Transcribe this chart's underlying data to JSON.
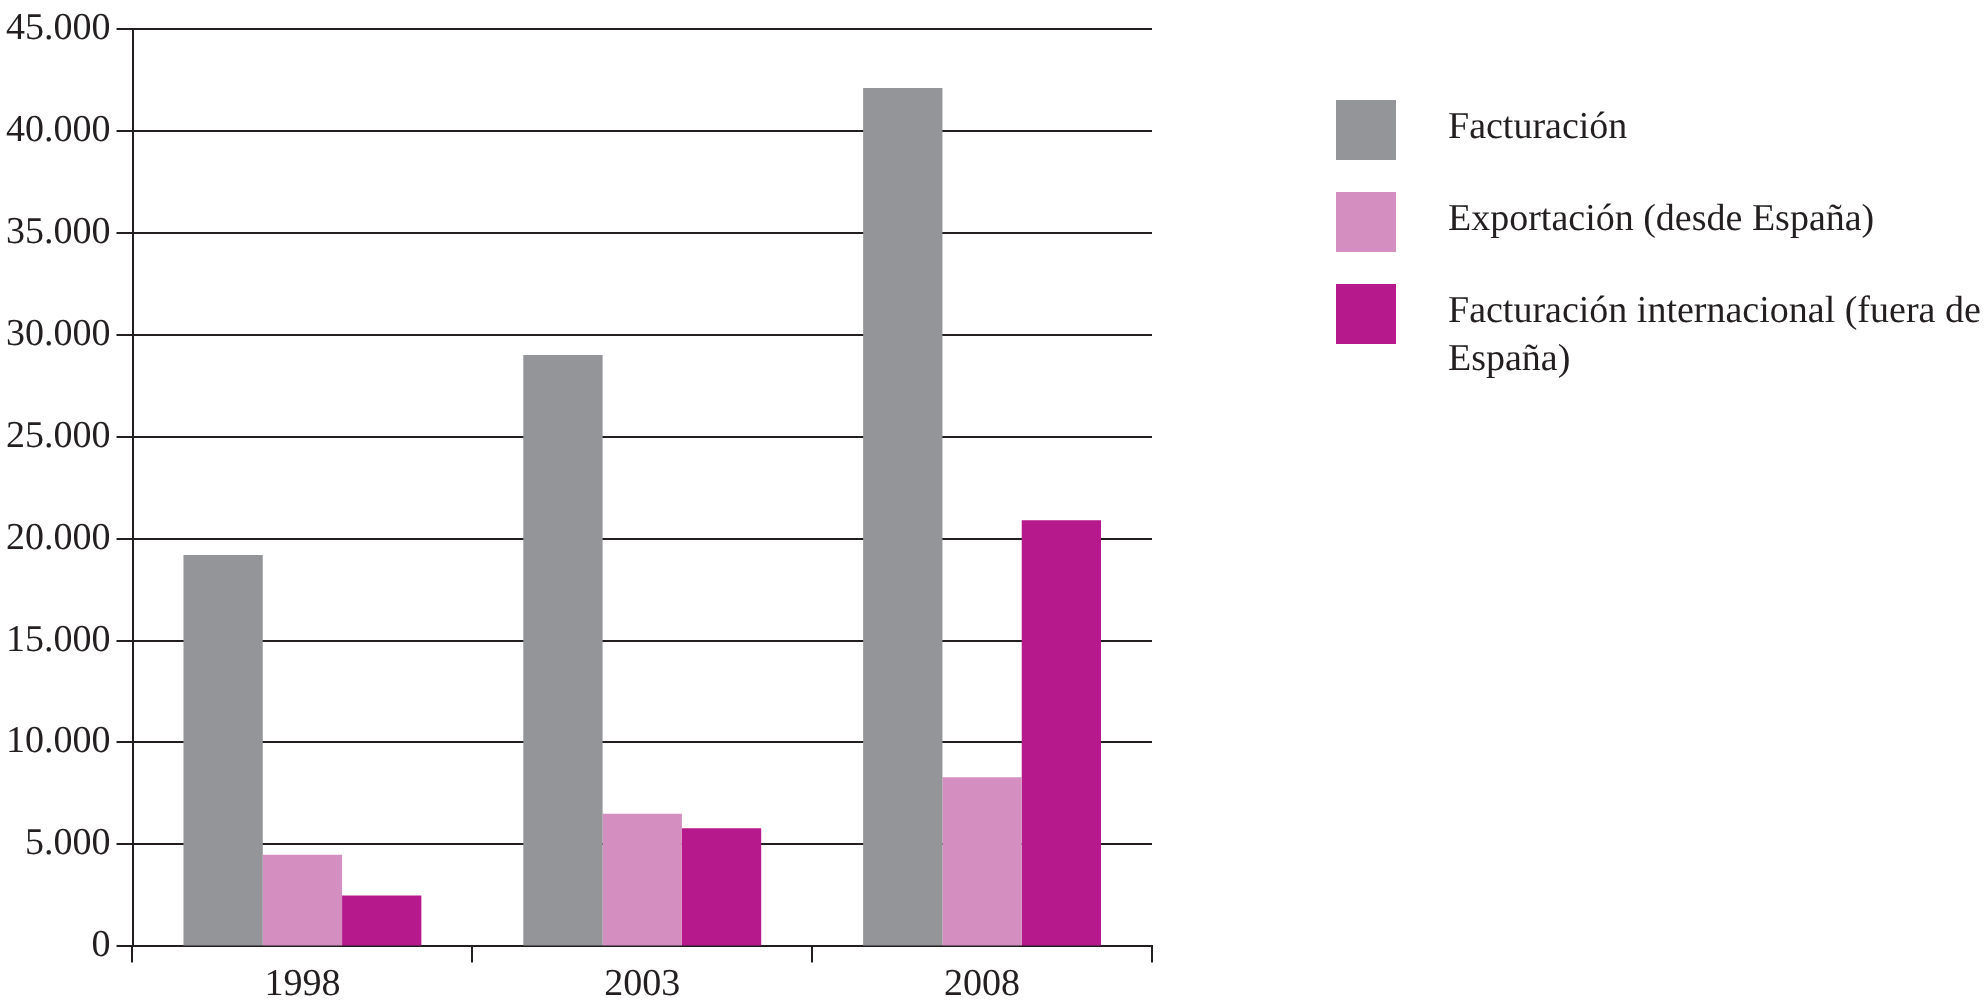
{
  "chart_data": {
    "type": "bar",
    "categories": [
      "1998",
      "2003",
      "2008"
    ],
    "series": [
      {
        "name": "Facturación",
        "color": "#939598",
        "values": [
          19200,
          29000,
          42100
        ]
      },
      {
        "name": "Exportación (desde España)",
        "color": "#d48fc0",
        "values": [
          4500,
          6500,
          8300
        ]
      },
      {
        "name": "Facturación internacional (fuera de España)",
        "color": "#b5198b",
        "values": [
          2500,
          5800,
          20900
        ]
      }
    ],
    "ylim": [
      0,
      45000
    ],
    "yticks": [
      0,
      {
        "value": 5000,
        "label": "5.000"
      },
      {
        "value": 10000,
        "label": "10.000"
      },
      {
        "value": 15000,
        "label": "15.000"
      },
      {
        "value": 20000,
        "label": "20.000"
      },
      {
        "value": 25000,
        "label": "25.000"
      },
      {
        "value": 30000,
        "label": "30.000"
      },
      {
        "value": 35000,
        "label": "35.000"
      },
      {
        "value": 40000,
        "label": "40.000"
      },
      {
        "value": 45000,
        "label": "45.000"
      }
    ],
    "grid": "y",
    "legend": "right"
  }
}
